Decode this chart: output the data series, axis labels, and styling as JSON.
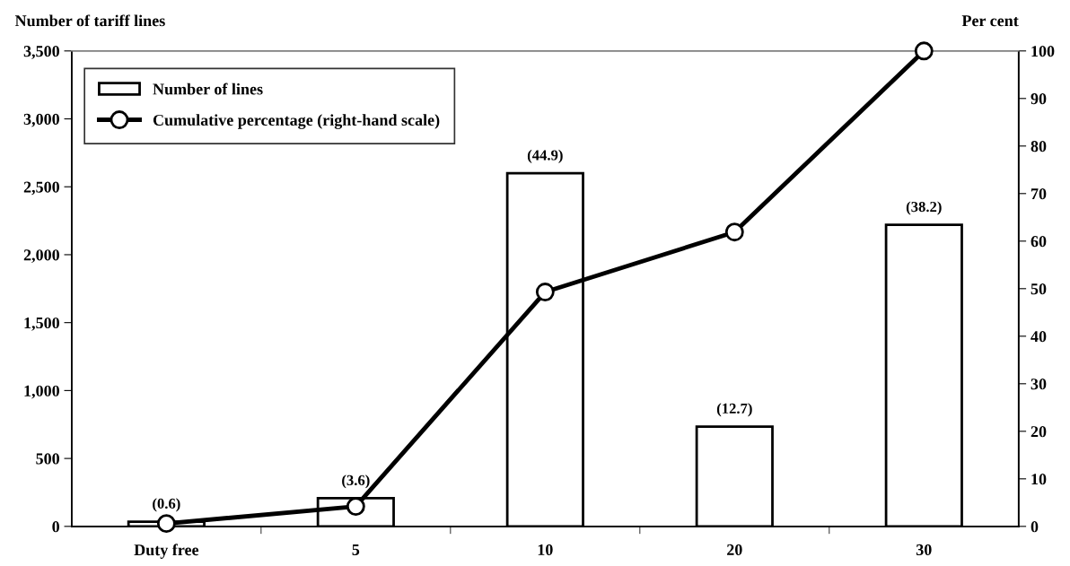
{
  "chart_data": {
    "type": "bar",
    "ylabel": "Number of tariff lines",
    "y2label": "Per cent",
    "categories": [
      "Duty free",
      "5",
      "10",
      "20",
      "30"
    ],
    "series": [
      {
        "name": "Number of lines",
        "color": "#ffffff",
        "values": [
          35,
          207,
          2600,
          735,
          2220
        ]
      },
      {
        "name": "Cumulative percentage (right-hand scale)",
        "type": "line",
        "axis": "y2",
        "color": "#000000",
        "marker": "circle",
        "line_style": "solid",
        "values": [
          0.6,
          4.2,
          49.3,
          61.9,
          100
        ]
      }
    ],
    "ylim": [
      0,
      3500
    ],
    "yticks": [
      {
        "value": 0,
        "label": "0"
      },
      {
        "value": 500,
        "label": "500"
      },
      {
        "value": 1000,
        "label": "1,000"
      },
      {
        "value": 1500,
        "label": "1,500"
      },
      {
        "value": 2000,
        "label": "2,000"
      },
      {
        "value": 2500,
        "label": "2,500"
      },
      {
        "value": 3000,
        "label": "3,000"
      },
      {
        "value": 3500,
        "label": "3,500"
      }
    ],
    "y2lim": [
      0,
      100
    ],
    "y2ticks": [
      0,
      10,
      20,
      30,
      40,
      50,
      60,
      70,
      80,
      90,
      100
    ],
    "annotations": [
      {
        "text": "(0.6)",
        "x": "Duty free",
        "y": 35
      },
      {
        "text": "(3.6)",
        "x": "5",
        "y": 207
      },
      {
        "text": "(44.9)",
        "x": "10",
        "y": 2600
      },
      {
        "text": "(12.7)",
        "x": "20",
        "y": 735
      },
      {
        "text": "(38.2)",
        "x": "30",
        "y": 2220
      }
    ],
    "grid": false,
    "legend": "top left"
  }
}
